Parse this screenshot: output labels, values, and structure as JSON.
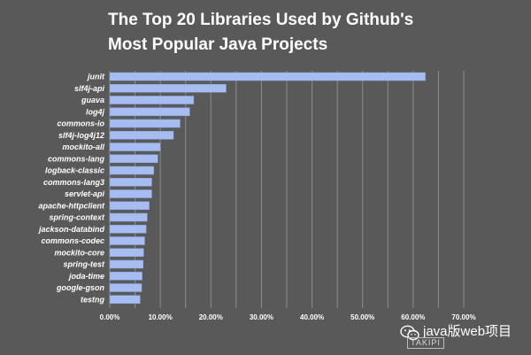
{
  "chart_data": {
    "type": "bar",
    "orientation": "horizontal",
    "title_lines": [
      "The Top 20 Libraries Used by Github's",
      "Most Popular Java Projects"
    ],
    "categories": [
      "junit",
      "slf4j-api",
      "guava",
      "log4j",
      "commons-io",
      "slf4j-log4j12",
      "mockito-all",
      "commons-lang",
      "logback-classic",
      "commons-lang3",
      "servlet-api",
      "apache-httpclient",
      "spring-context",
      "jackson-databind",
      "commons-codec",
      "mockito-core",
      "spring-test",
      "joda-time",
      "google-gson",
      "testng"
    ],
    "values": [
      62.4,
      23.0,
      16.6,
      15.8,
      13.9,
      12.6,
      10.0,
      9.5,
      8.7,
      8.3,
      8.3,
      7.8,
      7.4,
      7.2,
      6.9,
      6.7,
      6.6,
      6.4,
      6.3,
      6.0
    ],
    "xlim": [
      0,
      70
    ],
    "x_ticks": [
      "0.00%",
      "10.00%",
      "20.00%",
      "30.00%",
      "40.00%",
      "50.00%",
      "60.00%",
      "70.00%"
    ],
    "xlabel": "",
    "ylabel": "",
    "grid": "vertical",
    "legend": "none",
    "colors": {
      "background": "#595959",
      "bar": "#a7bdf2",
      "bar_edge": "#8aa2d8",
      "grid": "#8c8c8c",
      "text": "#ffffff"
    }
  },
  "watermark": {
    "icon": "wechat-icon",
    "text": "java版web项目",
    "logo_text": "TAKIPI"
  }
}
